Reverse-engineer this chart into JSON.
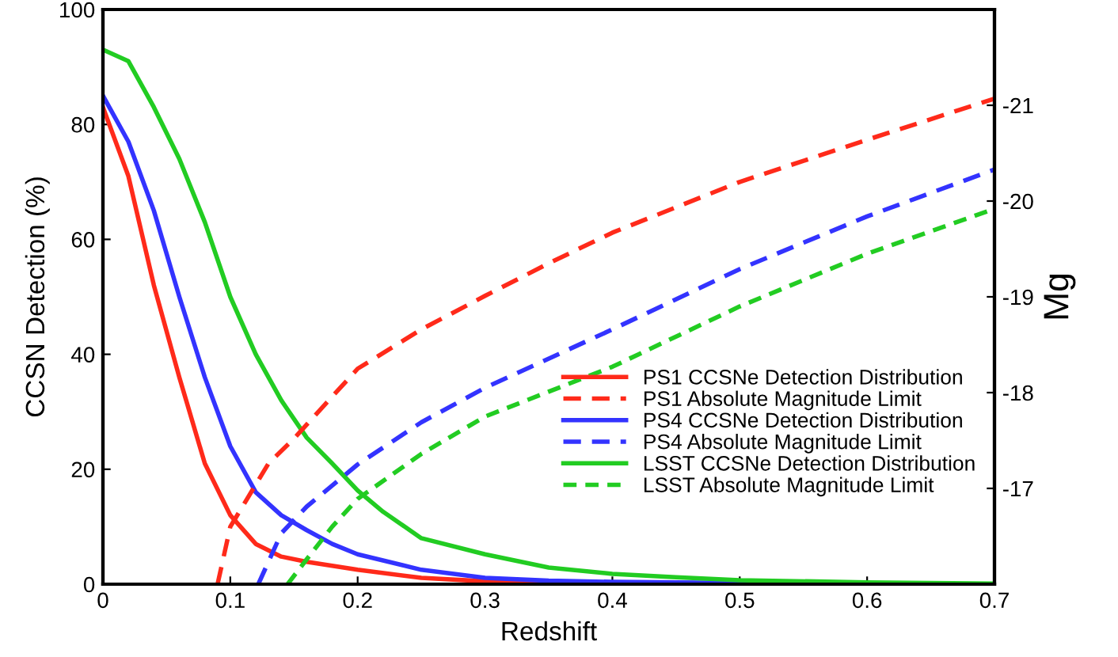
{
  "chart_data": {
    "type": "line",
    "xlabel": "Redshift",
    "ylabel": "CCSN Detection (%)",
    "y2label": "Mg",
    "xlim": [
      0,
      0.7
    ],
    "xticks": [
      0,
      0.1,
      0.2,
      0.3,
      0.4,
      0.5,
      0.6,
      0.7
    ],
    "ylim": [
      0,
      100
    ],
    "yticks": [
      0,
      20,
      40,
      60,
      80,
      100
    ],
    "y2lim": [
      -16,
      -22
    ],
    "y2ticks": [
      -17,
      -18,
      -19,
      -20,
      -21
    ],
    "legend": "bottom right",
    "grid": false,
    "series": [
      {
        "name": "PS1 CCSNe Detection Distribution",
        "color": "#ff2a1a",
        "line_style": "solid",
        "x": [
          0,
          0.02,
          0.04,
          0.06,
          0.08,
          0.1,
          0.12,
          0.14,
          0.16,
          0.2,
          0.25,
          0.3,
          0.4
        ],
        "values": [
          83,
          71,
          52,
          36,
          21,
          12,
          7,
          4.8,
          3.9,
          2.5,
          1.1,
          0.5,
          0.2
        ]
      },
      {
        "name": "PS1 Absolute Magnitude Limit",
        "color": "#ff2a1a",
        "line_style": "dashed",
        "axis": "y2",
        "x": [
          0.09,
          0.1,
          0.13,
          0.15,
          0.2,
          0.25,
          0.3,
          0.35,
          0.4,
          0.5,
          0.6,
          0.7
        ],
        "values": [
          -16,
          -16.6,
          -17.26,
          -17.52,
          -18.25,
          -18.66,
          -19.01,
          -19.35,
          -19.67,
          -20.2,
          -20.64,
          -21.07
        ]
      },
      {
        "name": "PS4 CCSNe Detection Distribution",
        "color": "#3333ff",
        "line_style": "solid",
        "x": [
          0,
          0.02,
          0.04,
          0.06,
          0.08,
          0.1,
          0.12,
          0.14,
          0.16,
          0.18,
          0.2,
          0.25,
          0.3,
          0.35,
          0.4,
          0.5,
          0.7
        ],
        "values": [
          85,
          77,
          65,
          50,
          36,
          24,
          16,
          12,
          9.4,
          7,
          5.2,
          2.5,
          1.1,
          0.6,
          0.4,
          0.2,
          0
        ]
      },
      {
        "name": "PS4 Absolute Magnitude Limit",
        "color": "#3333ff",
        "line_style": "dashed",
        "axis": "y2",
        "x": [
          0.122,
          0.14,
          0.16,
          0.2,
          0.25,
          0.3,
          0.4,
          0.5,
          0.6,
          0.7
        ],
        "values": [
          -16,
          -16.53,
          -16.81,
          -17.25,
          -17.69,
          -18.05,
          -18.66,
          -19.29,
          -19.84,
          -20.33
        ]
      },
      {
        "name": "LSST CCSNe Detection Distribution",
        "color": "#22cc22",
        "line_style": "solid",
        "x": [
          0,
          0.02,
          0.04,
          0.06,
          0.08,
          0.1,
          0.12,
          0.14,
          0.16,
          0.18,
          0.2,
          0.22,
          0.25,
          0.3,
          0.35,
          0.4,
          0.45,
          0.5,
          0.6,
          0.7
        ],
        "values": [
          93,
          91,
          83,
          74,
          63,
          50,
          40,
          32,
          25.5,
          21,
          16.3,
          12.6,
          8,
          5.2,
          2.9,
          1.8,
          1.2,
          0.7,
          0.3,
          0.1
        ]
      },
      {
        "name": "LSST Absolute Magnitude Limit",
        "color": "#22cc22",
        "line_style": "dotted",
        "axis": "y2",
        "x": [
          0.145,
          0.16,
          0.18,
          0.2,
          0.25,
          0.3,
          0.4,
          0.5,
          0.6,
          0.7
        ],
        "values": [
          -16,
          -16.26,
          -16.6,
          -16.89,
          -17.36,
          -17.75,
          -18.27,
          -18.9,
          -19.45,
          -19.92
        ]
      }
    ]
  }
}
